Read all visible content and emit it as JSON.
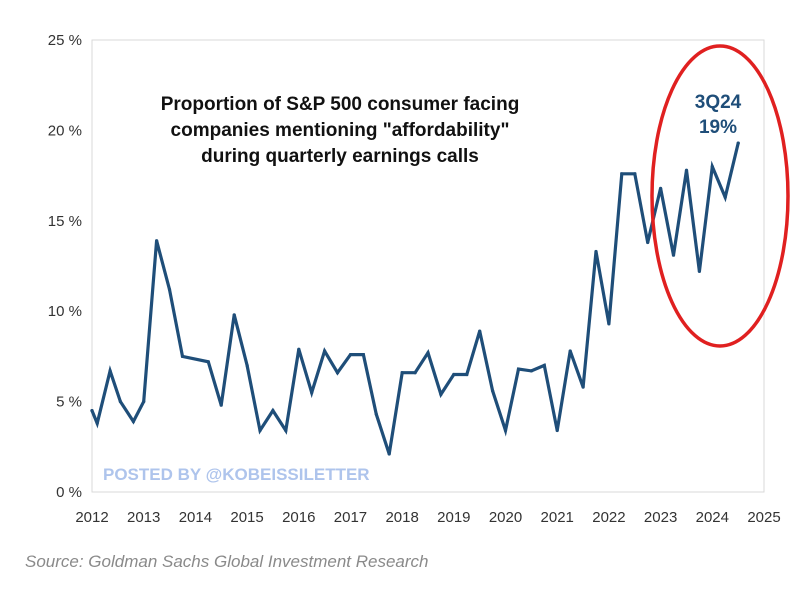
{
  "chart_data": {
    "type": "line",
    "title_lines": [
      "Proportion of S&P 500 consumer facing",
      "companies mentioning \"affordability\"",
      "during quarterly earnings calls"
    ],
    "xlabel": "",
    "ylabel": "",
    "xlim": [
      2012,
      2025
    ],
    "ylim": [
      0,
      25
    ],
    "x_ticks": [
      "2012",
      "2013",
      "2014",
      "2015",
      "2016",
      "2017",
      "2018",
      "2019",
      "2020",
      "2021",
      "2022",
      "2023",
      "2024",
      "2025"
    ],
    "y_ticks": [
      "0 %",
      "5 %",
      "10 %",
      "15 %",
      "20 %",
      "25 %"
    ],
    "grid": false,
    "series": [
      {
        "color": "#1f4e79",
        "x": [
          2012.0,
          2012.1,
          2012.35,
          2012.55,
          2012.8,
          2013.0,
          2013.25,
          2013.5,
          2013.75,
          2014.25,
          2014.5,
          2014.75,
          2015.0,
          2015.25,
          2015.5,
          2015.75,
          2016.0,
          2016.25,
          2016.5,
          2016.75,
          2017.0,
          2017.25,
          2017.5,
          2017.75,
          2018.0,
          2018.25,
          2018.5,
          2018.75,
          2019.0,
          2019.25,
          2019.5,
          2019.75,
          2020.0,
          2020.25,
          2020.5,
          2020.75,
          2021.0,
          2021.25,
          2021.5,
          2021.75,
          2022.0,
          2022.25,
          2022.5,
          2022.75,
          2023.0,
          2023.25,
          2023.5,
          2023.75,
          2024.0,
          2024.25,
          2024.5
        ],
        "values": [
          4.5,
          3.8,
          6.7,
          5.0,
          3.9,
          5.0,
          13.9,
          11.2,
          7.5,
          7.2,
          4.8,
          9.8,
          7.0,
          3.4,
          4.5,
          3.4,
          7.9,
          5.5,
          7.8,
          6.6,
          7.6,
          7.6,
          4.3,
          2.1,
          6.6,
          6.6,
          7.7,
          5.4,
          6.5,
          6.5,
          8.9,
          5.6,
          3.4,
          6.8,
          6.7,
          7.0,
          3.4,
          7.8,
          5.8,
          13.3,
          9.3,
          17.6,
          17.6,
          13.8,
          16.8,
          13.1,
          17.8,
          12.2,
          18.0,
          16.3,
          19.3
        ]
      }
    ],
    "annotations": [
      {
        "label": "3Q24",
        "value_label": "19%",
        "x": 2024.5,
        "y": 19.3,
        "highlight_color": "#e02020"
      }
    ],
    "watermark": "POSTED BY @KOBEISSILETTER",
    "source": "Source: Goldman Sachs Global Investment Research"
  }
}
